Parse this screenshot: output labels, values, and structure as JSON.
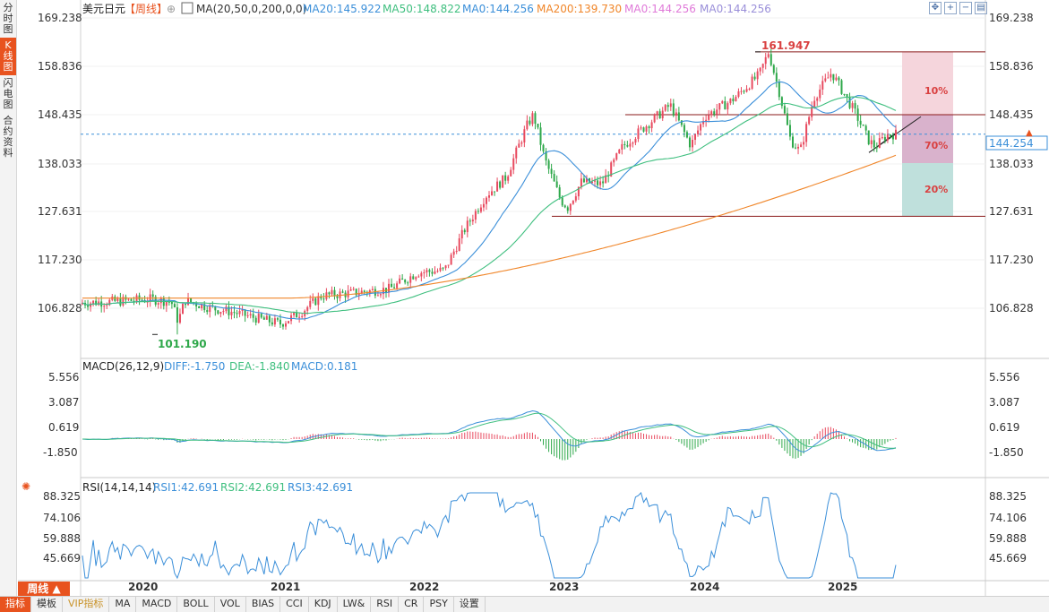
{
  "sidebar": {
    "items": [
      {
        "label": "分时图",
        "active": false
      },
      {
        "label": "K线图",
        "active": true
      },
      {
        "label": "闪电图",
        "active": false
      },
      {
        "label": "合约资料",
        "active": false
      }
    ]
  },
  "header": {
    "symbol": "美元日元",
    "period": "【周线】",
    "ma_label": "MA(20,50,0,200,0,0)",
    "ma_values": [
      {
        "text": "MA20:145.922",
        "color": "#3b8fd9"
      },
      {
        "text": "MA50:148.822",
        "color": "#3fbf7f"
      },
      {
        "text": "MA0:144.256",
        "color": "#3b8fd9"
      },
      {
        "text": "MA200:139.730",
        "color": "#f0862a"
      },
      {
        "text": "MA0:144.256",
        "color": "#e07ad9"
      },
      {
        "text": "MA0:144.256",
        "color": "#9a8fd9"
      }
    ]
  },
  "toolbar_icons": [
    "move-icon",
    "zoom-in-icon",
    "zoom-out-icon",
    "settings-icon"
  ],
  "price_axis": {
    "ticks": [
      "169.238",
      "158.836",
      "148.435",
      "138.033",
      "127.631",
      "117.230",
      "106.828"
    ],
    "current_price": "144.254"
  },
  "annotations": {
    "high": "161.947",
    "low": "101.190",
    "zone_labels": [
      "10%",
      "70%",
      "20%"
    ]
  },
  "macd": {
    "label": "MACD(26,12,9)",
    "diff": "DIFF:-1.750",
    "dea": "DEA:-1.840",
    "macd": "MACD:0.181",
    "ticks": [
      "5.556",
      "3.087",
      "0.619",
      "-1.850"
    ]
  },
  "rsi": {
    "label": "RSI(14,14,14)",
    "rsi1": "RSI1:42.691",
    "rsi2": "RSI2:42.691",
    "rsi3": "RSI3:42.691",
    "ticks": [
      "88.325",
      "74.106",
      "59.888",
      "45.669"
    ]
  },
  "time_axis": [
    "2020",
    "2021",
    "2022",
    "2023",
    "2024",
    "2025"
  ],
  "period_badge": "周线",
  "bottom_tabs": [
    {
      "label": "指标",
      "active": true
    },
    {
      "label": "模板"
    },
    {
      "label": "VIP指标",
      "vip": true
    },
    {
      "label": "MA"
    },
    {
      "label": "MACD"
    },
    {
      "label": "BOLL"
    },
    {
      "label": "VOL"
    },
    {
      "label": "BIAS"
    },
    {
      "label": "CCI"
    },
    {
      "label": "KDJ"
    },
    {
      "label": "LW&"
    },
    {
      "label": "RSI"
    },
    {
      "label": "CR"
    },
    {
      "label": "PSY"
    },
    {
      "label": "设置"
    }
  ],
  "chart_data": {
    "type": "candlestick",
    "instrument": "USDJPY weekly",
    "price_range": [
      101.19,
      169.238
    ],
    "x_range": [
      2019.5,
      2025.75
    ],
    "anchors": [
      [
        2019.5,
        108.0
      ],
      [
        2019.75,
        108.3
      ],
      [
        2020.0,
        108.8
      ],
      [
        2020.15,
        108.2
      ],
      [
        2020.2,
        104.0
      ],
      [
        2020.25,
        108.5
      ],
      [
        2020.45,
        106.8
      ],
      [
        2020.6,
        106.0
      ],
      [
        2020.8,
        104.5
      ],
      [
        2020.95,
        103.5
      ],
      [
        2021.1,
        106.0
      ],
      [
        2021.25,
        109.5
      ],
      [
        2021.5,
        110.2
      ],
      [
        2021.75,
        111.0
      ],
      [
        2021.95,
        114.5
      ],
      [
        2022.15,
        115.0
      ],
      [
        2022.3,
        124.0
      ],
      [
        2022.45,
        131.0
      ],
      [
        2022.6,
        135.0
      ],
      [
        2022.75,
        146.0
      ],
      [
        2022.8,
        148.5
      ],
      [
        2022.88,
        139.0
      ],
      [
        2023.0,
        130.0
      ],
      [
        2023.05,
        128.5
      ],
      [
        2023.15,
        134.0
      ],
      [
        2023.3,
        133.5
      ],
      [
        2023.45,
        141.5
      ],
      [
        2023.6,
        145.5
      ],
      [
        2023.8,
        150.5
      ],
      [
        2023.95,
        141.8
      ],
      [
        2024.05,
        148.0
      ],
      [
        2024.25,
        151.5
      ],
      [
        2024.45,
        157.0
      ],
      [
        2024.52,
        161.95
      ],
      [
        2024.6,
        153.0
      ],
      [
        2024.68,
        143.0
      ],
      [
        2024.75,
        140.5
      ],
      [
        2024.85,
        152.0
      ],
      [
        2024.98,
        157.5
      ],
      [
        2025.05,
        154.0
      ],
      [
        2025.15,
        149.0
      ],
      [
        2025.25,
        143.0
      ],
      [
        2025.3,
        141.5
      ],
      [
        2025.38,
        144.0
      ],
      [
        2025.45,
        144.3
      ]
    ]
  }
}
